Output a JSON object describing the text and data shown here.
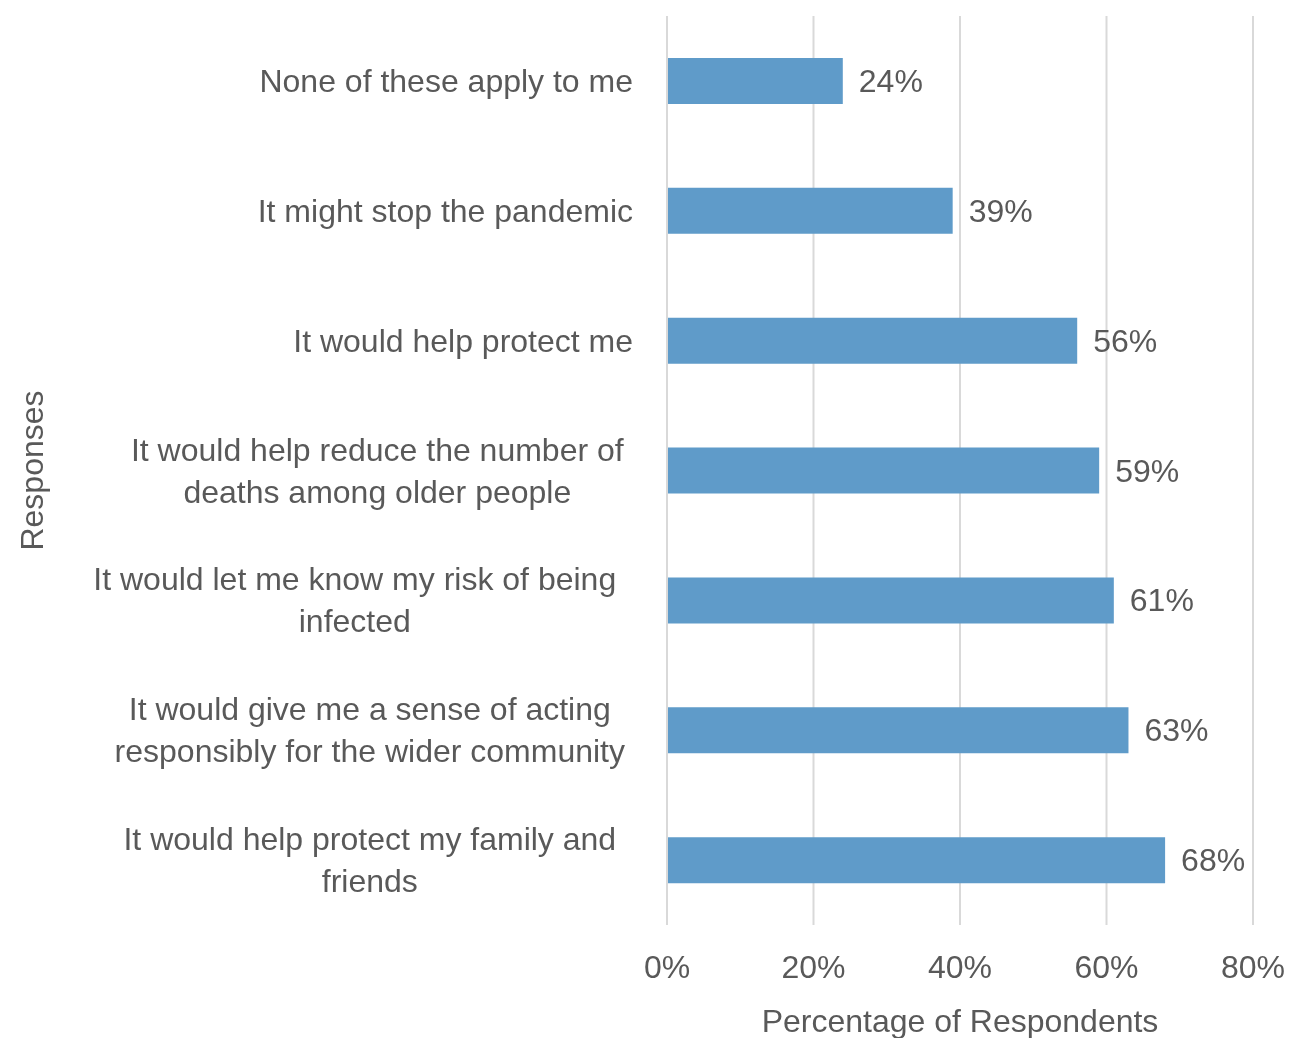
{
  "chart_data": {
    "type": "bar",
    "orientation": "horizontal",
    "xlabel": "Percentage of Respondents",
    "ylabel": "Responses",
    "categories": [
      "None of these apply to me",
      "It might stop the pandemic",
      "It would help protect me",
      "It would help reduce the number of deaths among older people",
      "It would let me know my risk of being infected",
      "It would give me a sense of acting responsibly for the wider community",
      "It would help protect my family and friends"
    ],
    "values": [
      24,
      39,
      56,
      59,
      61,
      63,
      68
    ],
    "value_labels": [
      "24%",
      "39%",
      "56%",
      "59%",
      "61%",
      "63%",
      "68%"
    ],
    "color": "#5f9bc9",
    "xlim": [
      0,
      80
    ],
    "xticks": [
      {
        "value": 0,
        "label": "0%"
      },
      {
        "value": 20,
        "label": "20%"
      },
      {
        "value": 40,
        "label": "40%"
      },
      {
        "value": 60,
        "label": "60%"
      },
      {
        "value": 80,
        "label": "80%"
      }
    ],
    "grid": "x",
    "legend": false
  }
}
